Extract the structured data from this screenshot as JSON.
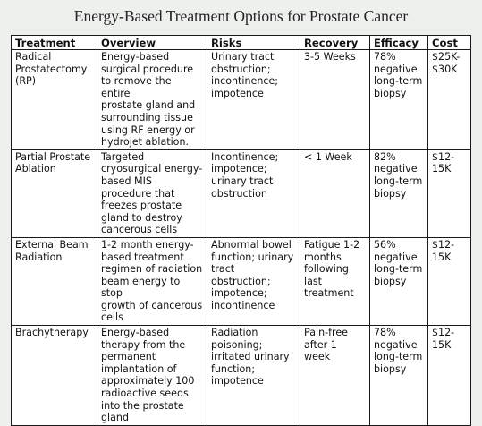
{
  "title": "Energy-Based Treatment Options for Prostate Cancer",
  "headers": [
    "Treatment",
    "Overview",
    "Risks",
    "Recovery",
    "Efficacy",
    "Cost"
  ],
  "rows": [
    {
      "treatment": "Radical\nProstatectomy\n(RP)",
      "overview": "Energy-based\nsurgical procedure\nto remove the entire\nprostate gland and\nsurrounding tissue\nusing RF energy or\nhydrojet ablation.",
      "risks": "Urinary tract\nobstruction;\nincontinence;\nimpotence",
      "recovery": "3-5 Weeks",
      "efficacy": "78%\nnegative\nlong-term\nbiopsy",
      "cost": "$25K-\n$30K"
    },
    {
      "treatment": "Partial Prostate\nAblation",
      "overview": "Targeted\ncryosurgical energy-\nbased MIS\nprocedure that\nfreezes prostate\ngland to destroy\ncancerous cells",
      "risks": "Incontinence;\nimpotence;\nurinary tract\nobstruction",
      "recovery": "< 1 Week",
      "efficacy": "82%\nnegative\nlong-term\nbiopsy",
      "cost": "$12-\n15K"
    },
    {
      "treatment": "External Beam\nRadiation",
      "overview": "1-2 month energy-\nbased treatment\nregimen of radiation\nbeam energy to stop\ngrowth of cancerous\ncells",
      "risks": "Abnormal bowel\nfunction; urinary\ntract\nobstruction;\nimpotence;\nincontinence",
      "recovery": "Fatigue 1-2\nmonths\nfollowing\nlast\ntreatment",
      "efficacy": "56%\nnegative\nlong-term\nbiopsy",
      "cost": "$12-\n15K"
    },
    {
      "treatment": "Brachytherapy",
      "overview": "Energy-based\ntherapy from the\npermanent\nimplantation of\napproximately 100\nradioactive seeds\ninto the prostate\ngland",
      "risks": "Radiation\npoisoning;\nirritated urinary\nfunction;\nimpotence",
      "recovery": "Pain-free\nafter 1\nweek",
      "efficacy": "78%\nnegative\nlong-term\nbiopsy",
      "cost": "$12-\n15K"
    }
  ]
}
